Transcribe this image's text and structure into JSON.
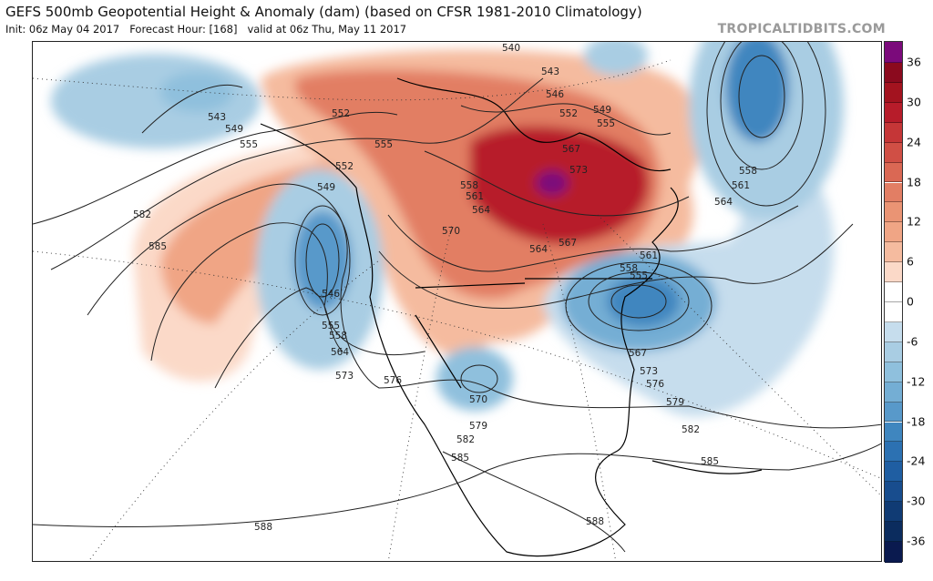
{
  "header": {
    "title": "GEFS 500mb Geopotential Height & Anomaly (dam) (based on CFSR 1981-2010 Climatology)",
    "init": "Init: 06z May 04 2017",
    "forecast_hour": "Forecast Hour: [168]",
    "valid": "valid at 06z Thu, May 11 2017",
    "brand": "TROPICALTIDBITS.COM"
  },
  "colorbar": {
    "ticks": [
      "36",
      "30",
      "24",
      "18",
      "12",
      "6",
      "0",
      "-6",
      "-12",
      "-18",
      "-24",
      "-30",
      "-36"
    ],
    "colors": [
      "#7b0a7b",
      "#8b0a1e",
      "#a3131f",
      "#b71c2a",
      "#c53637",
      "#d04f45",
      "#da6854",
      "#e27e64",
      "#ea9474",
      "#f0a585",
      "#f5bb9f",
      "#fbd9c8",
      "#ffffff",
      "#ffffff",
      "#c6dded",
      "#a9cde3",
      "#8fc0dd",
      "#74aed4",
      "#5899ca",
      "#3f86bf",
      "#2c71b2",
      "#1f5ea2",
      "#184d8e",
      "#103b74",
      "#0b2c5e",
      "#0a1a4f"
    ]
  },
  "contour_labels": [
    "540",
    "543",
    "546",
    "549",
    "552",
    "555",
    "567",
    "573",
    "558",
    "561",
    "564",
    "543",
    "549",
    "555",
    "552",
    "555",
    "552",
    "549",
    "582",
    "585",
    "546",
    "555",
    "558",
    "564",
    "573",
    "576",
    "570",
    "579",
    "582",
    "585",
    "588",
    "588",
    "585",
    "582",
    "579",
    "576",
    "573",
    "567",
    "555",
    "561",
    "558",
    "564",
    "567",
    "570",
    "558",
    "561",
    "564"
  ]
}
